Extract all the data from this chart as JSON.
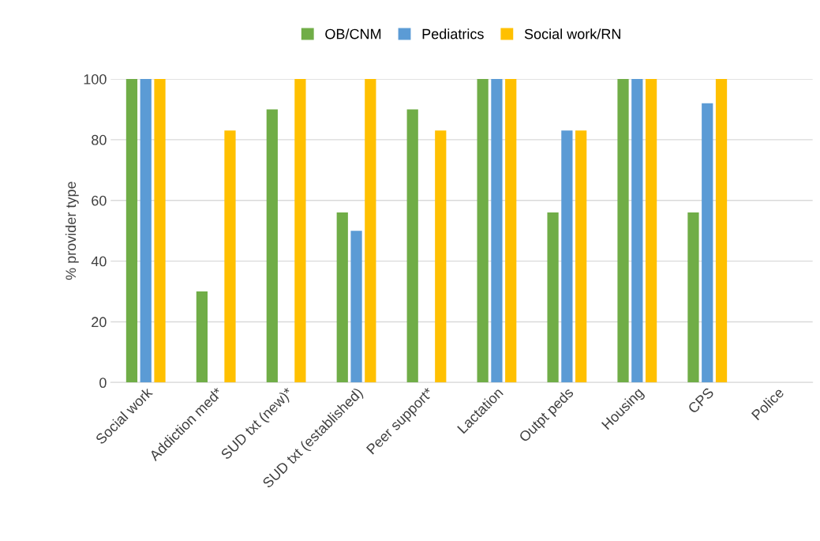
{
  "chart_data": {
    "type": "bar",
    "ylabel": "% provider type",
    "categories": [
      "Social work",
      "Addiction med*",
      "SUD txt (new)*",
      "SUD txt (established)",
      "Peer support*",
      "Lactation",
      "Outpt peds",
      "Housing",
      "CPS",
      "Police"
    ],
    "series": [
      {
        "name": "OB/CNM",
        "color": "#70ad47",
        "values": [
          100,
          30,
          90,
          56,
          90,
          100,
          56,
          100,
          56,
          0
        ]
      },
      {
        "name": "Pediatrics",
        "color": "#5b9bd5",
        "values": [
          100,
          0,
          0,
          50,
          0,
          100,
          83,
          100,
          92,
          0
        ]
      },
      {
        "name": "Social work/RN",
        "color": "#ffc000",
        "values": [
          100,
          83,
          100,
          100,
          83,
          100,
          83,
          100,
          100,
          0
        ]
      }
    ],
    "ylim": [
      0,
      100
    ],
    "yticks": [
      0,
      20,
      40,
      60,
      80,
      100
    ],
    "grid": "y",
    "legend": "top"
  }
}
